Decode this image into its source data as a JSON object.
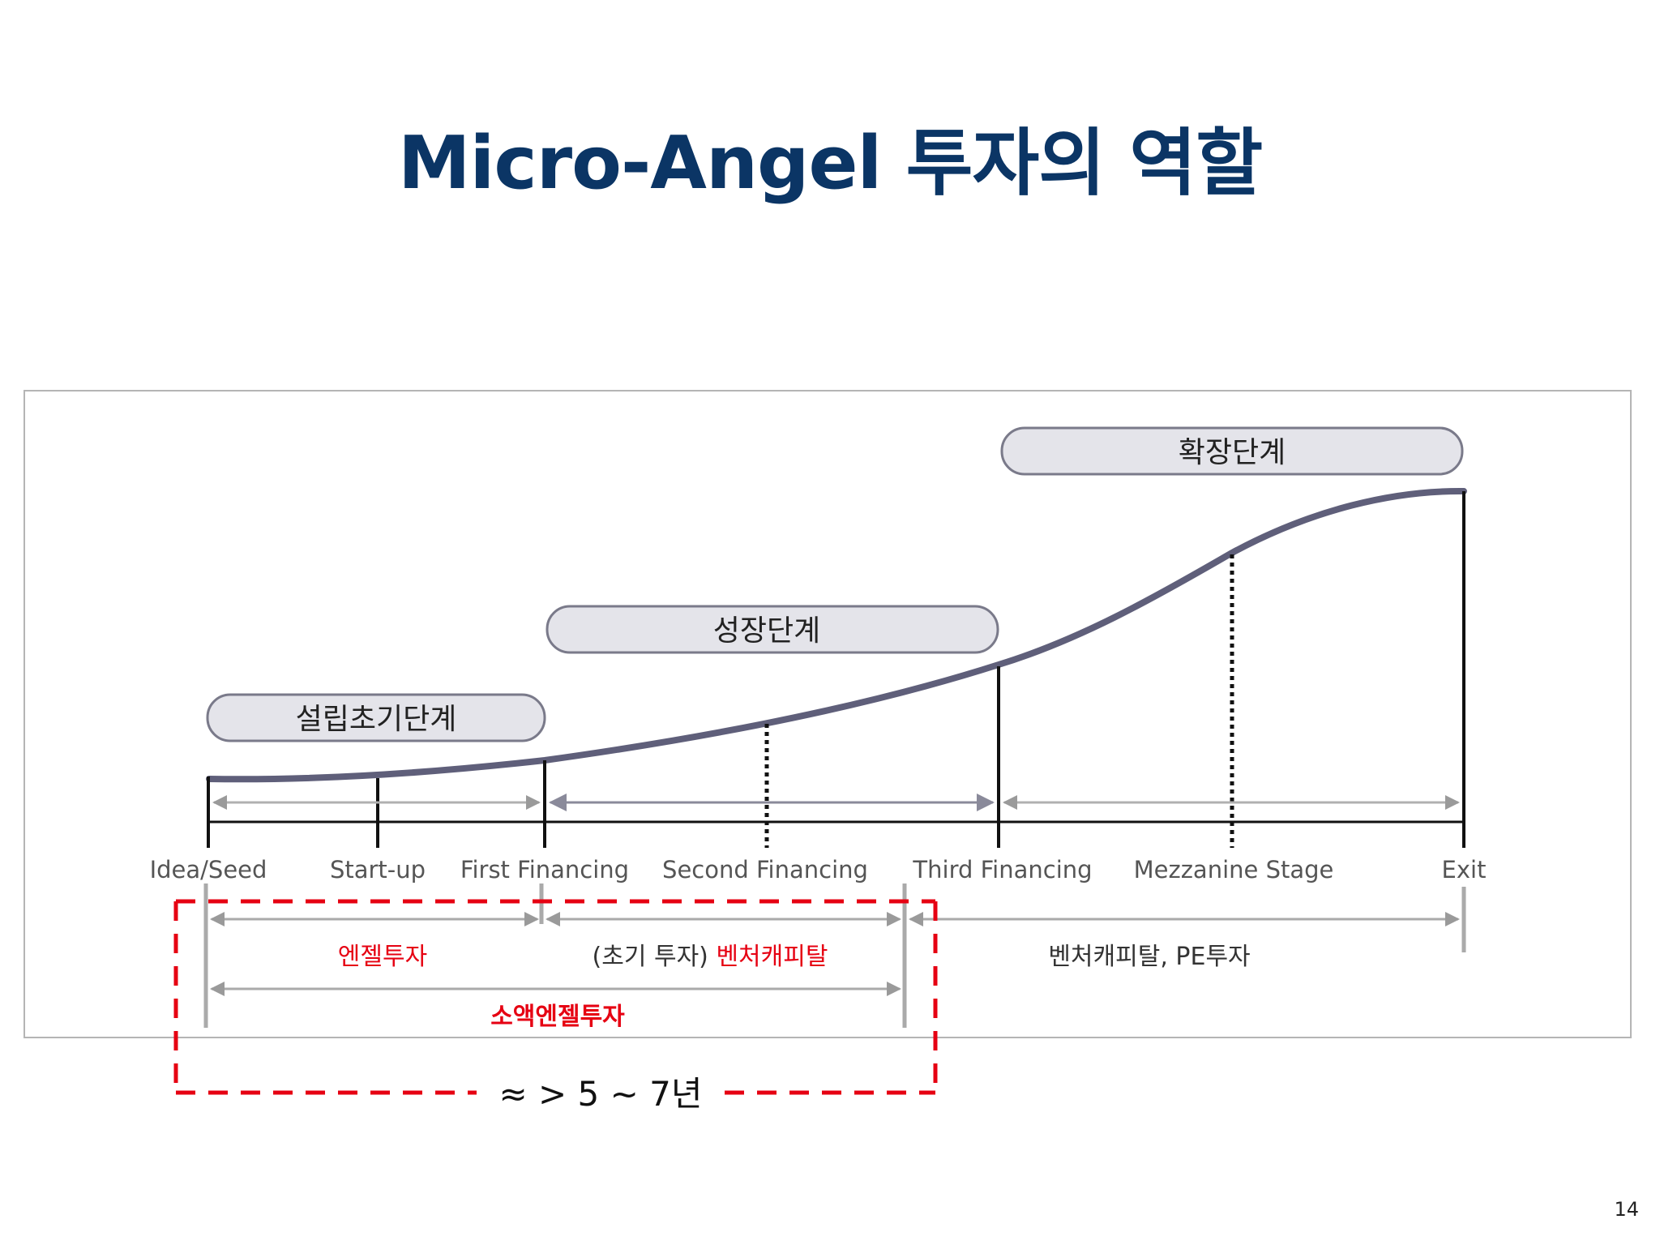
{
  "slide": {
    "title": "Micro-Angel 투자의 역할",
    "page_number": "14"
  },
  "stages": {
    "early": "설립초기단계",
    "growth": "성장단계",
    "expansion": "확장단계"
  },
  "milestones": [
    "Idea/Seed",
    "Start-up",
    "First Financing",
    "Second Financing",
    "Third Financing",
    "Mezzanine Stage",
    "Exit"
  ],
  "investors": {
    "angel": "엔젤투자",
    "early_vc_prefix": "(초기 투자) ",
    "early_vc_main": "벤처캐피탈",
    "vc_pe": "벤처캐피탈, PE투자",
    "micro_angel": "소액엔젤투자"
  },
  "duration": "≈ > 5 ~ 7년",
  "colors": {
    "title": "#0b3565",
    "highlight_red": "#e60012",
    "curve": "#5f5f7a",
    "badge_fill": "#e4e4ea",
    "arrow_gray": "#9a9a9a"
  }
}
